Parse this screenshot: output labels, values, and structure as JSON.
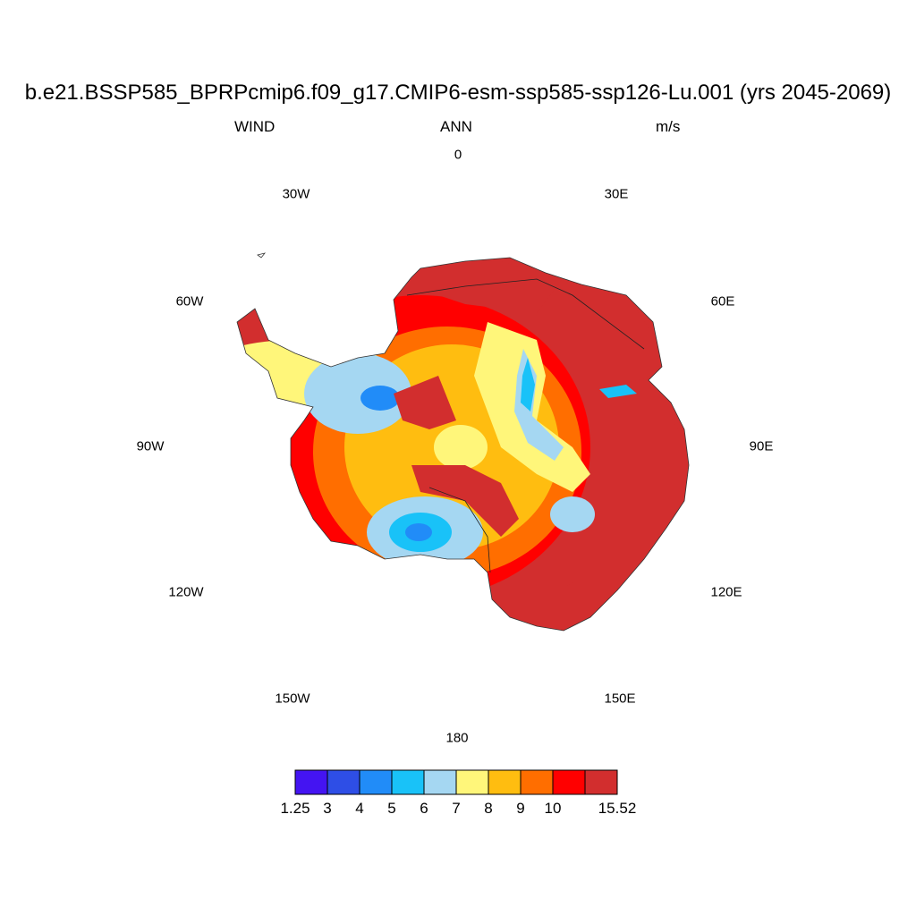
{
  "title": "b.e21.BSSP585_BPRPcmip6.f09_g17.CMIP6-esm-ssp585-ssp126-Lu.001 (yrs 2045-2069)",
  "left_label": "WIND",
  "center_label": "ANN",
  "right_label": "m/s",
  "longitude_labels": [
    "0",
    "30E",
    "60E",
    "90E",
    "120E",
    "150E",
    "180",
    "150W",
    "120W",
    "90W",
    "60W",
    "30W"
  ],
  "colorbar": {
    "colors": [
      "#4414f2",
      "#2e4ee6",
      "#218cf8",
      "#19c2f8",
      "#a5d7f2",
      "#fff67a",
      "#ffbd10",
      "#ff6e00",
      "#ff0000",
      "#d22e2e"
    ],
    "tick_labels": [
      "1.25",
      "3",
      "4",
      "5",
      "6",
      "7",
      "8",
      "9",
      "10",
      "15.52"
    ]
  },
  "chart_data": {
    "type": "heatmap",
    "projection": "south polar stereographic",
    "variable": "WIND",
    "period": "ANN",
    "units": "m/s",
    "levels": [
      1.25,
      3,
      4,
      5,
      6,
      7,
      8,
      9,
      10,
      15.52
    ],
    "approximate_field": "wind speed highest (>10 m/s) along East Antarctic coastal slopes (30E–150E), lowest (5–7 m/s) over Ross and Ronne-Filchner ice shelves and central plateau"
  }
}
